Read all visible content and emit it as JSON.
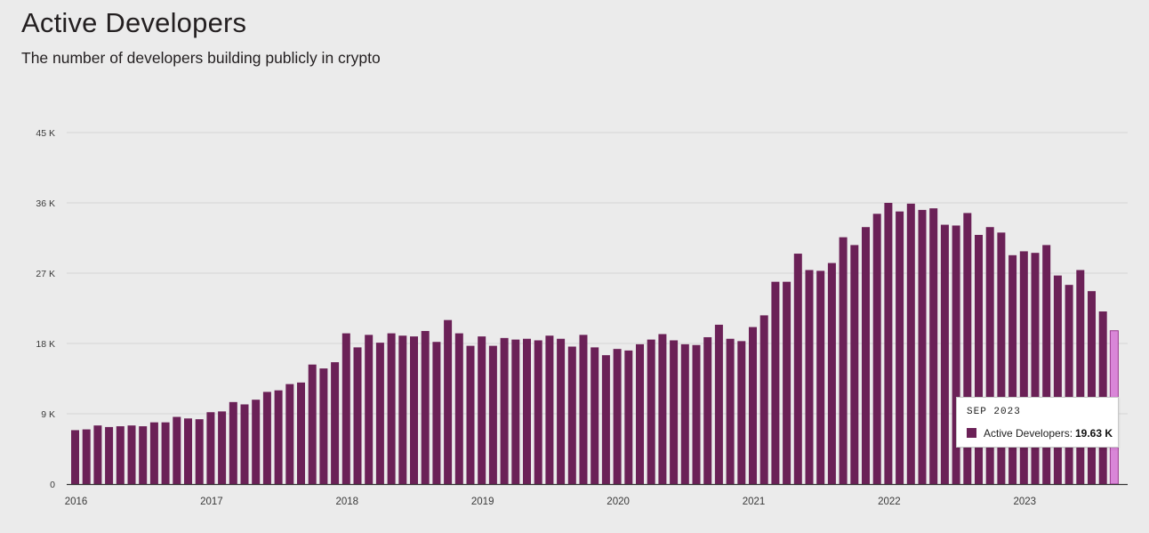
{
  "header": {
    "title": "Active Developers",
    "subtitle": "The number of developers building publicly in crypto"
  },
  "colors": {
    "bar": "#6b2157",
    "highlight_bar": "#d986d8",
    "highlight_stroke": "#9b3a8f",
    "grid": "#d6d6d6",
    "axis": "#333333"
  },
  "tooltip": {
    "date": "SEP 2023",
    "label": "Active Developers:",
    "value": "19.63 K"
  },
  "chart_data": {
    "type": "bar",
    "title": "Active Developers",
    "ylabel": "",
    "xlabel": "",
    "ylim": [
      0,
      45000
    ],
    "y_ticks": [
      {
        "value": 0,
        "label": "0"
      },
      {
        "value": 9000,
        "label": "9 K"
      },
      {
        "value": 18000,
        "label": "18 K"
      },
      {
        "value": 27000,
        "label": "27 K"
      },
      {
        "value": 36000,
        "label": "36 K"
      },
      {
        "value": 45000,
        "label": "45 K"
      }
    ],
    "x_ticks": [
      {
        "index": 0,
        "label": "2016"
      },
      {
        "index": 12,
        "label": "2017"
      },
      {
        "index": 24,
        "label": "2018"
      },
      {
        "index": 36,
        "label": "2019"
      },
      {
        "index": 48,
        "label": "2020"
      },
      {
        "index": 60,
        "label": "2021"
      },
      {
        "index": 72,
        "label": "2022"
      },
      {
        "index": 84,
        "label": "2023"
      }
    ],
    "start": "2016-01",
    "highlight_index": 92,
    "series": [
      {
        "name": "Active Developers",
        "values": [
          6900,
          7000,
          7500,
          7300,
          7400,
          7500,
          7400,
          7900,
          7900,
          8600,
          8400,
          8300,
          9200,
          9300,
          10500,
          10200,
          10800,
          11800,
          12000,
          12800,
          13000,
          15300,
          14800,
          15600,
          19300,
          17500,
          19100,
          18100,
          19300,
          19000,
          18900,
          19600,
          18200,
          21000,
          19300,
          17700,
          18900,
          17700,
          18700,
          18500,
          18600,
          18400,
          19000,
          18600,
          17600,
          19100,
          17500,
          16500,
          17300,
          17100,
          17900,
          18500,
          19200,
          18400,
          17900,
          17800,
          18800,
          20400,
          18600,
          18300,
          20100,
          21600,
          25900,
          25900,
          29500,
          27400,
          27300,
          28300,
          31600,
          30600,
          32900,
          34600,
          36000,
          34900,
          35900,
          35100,
          35300,
          33200,
          33100,
          34700,
          31900,
          32900,
          32200,
          29300,
          29800,
          29600,
          30600,
          26700,
          25500,
          27400,
          24700,
          22100,
          19630
        ]
      }
    ]
  }
}
